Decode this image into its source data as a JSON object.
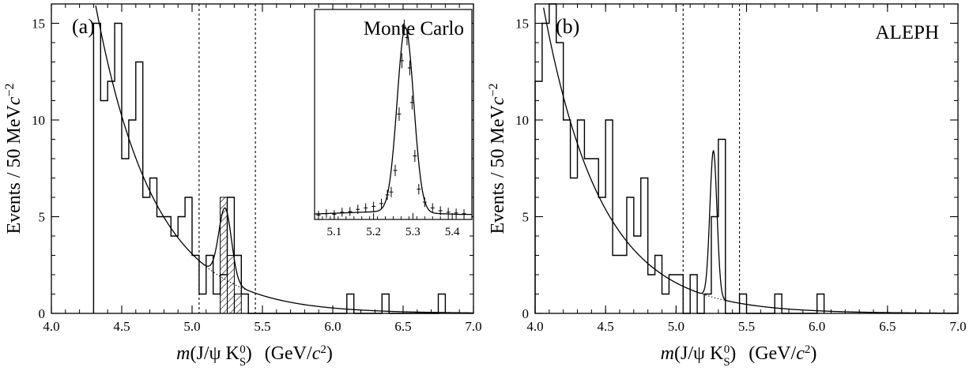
{
  "chart_data": [
    {
      "type": "histogram",
      "panel_label": "(a)",
      "corner_text": "",
      "ylabel": "Events / 50 MeV",
      "ylabel_unit": "c",
      "ylabel_exp": "−2",
      "xlabel_m": "m",
      "xlabel_paren": "(J/ψ K",
      "xlabel_sub": "S",
      "xlabel_sup": "0",
      "xlabel_close": ")",
      "xlabel_units_open": "(GeV/",
      "xlabel_units_c": "c",
      "xlabel_units_exp": "2",
      "xlabel_units_close": ")",
      "xlim": [
        4.0,
        7.0
      ],
      "ylim": [
        0,
        16
      ],
      "xticks": [
        "4.0",
        "4.5",
        "5.0",
        "5.5",
        "6.0",
        "6.5",
        "7.0"
      ],
      "yticks": [
        "0",
        "5",
        "10",
        "15"
      ],
      "bin_width": 0.05,
      "bin_edges_start": 4.3,
      "counts": [
        15,
        11,
        12,
        15,
        8,
        10,
        13,
        6,
        7,
        5,
        5,
        4,
        5,
        6,
        3,
        1,
        3,
        1,
        2,
        6,
        3,
        1,
        0,
        0,
        0,
        0,
        0,
        0,
        0,
        0,
        0,
        0,
        0,
        0,
        0,
        0,
        1,
        0,
        0,
        0,
        0,
        1,
        0,
        0,
        0,
        0,
        0,
        0,
        0,
        1
      ],
      "hatched_bins": [
        [
          5.2,
          6
        ],
        [
          5.25,
          3
        ],
        [
          5.3,
          1
        ]
      ],
      "vlines": [
        5.05,
        5.45
      ],
      "fit": {
        "bg_amplitude": 16.5,
        "bg_decay": 2.4,
        "bg_x0": 4.3,
        "peak_mean": 5.235,
        "peak_sigma": 0.045,
        "peak_height": 3.7
      },
      "inset": {
        "title": "Monte Carlo",
        "xlim": [
          5.05,
          5.45
        ],
        "xticks": [
          "5.1",
          "5.2",
          "5.3",
          "5.4"
        ],
        "ymax": 14,
        "peak_mean": 5.281,
        "peak_sigma": 0.021,
        "peak_height": 12.8,
        "baseline": 0.35,
        "points": [
          [
            5.06,
            0.3
          ],
          [
            5.08,
            0.4
          ],
          [
            5.1,
            0.35
          ],
          [
            5.12,
            0.5
          ],
          [
            5.14,
            0.55
          ],
          [
            5.16,
            0.7
          ],
          [
            5.18,
            0.8
          ],
          [
            5.2,
            0.9
          ],
          [
            5.22,
            1.1
          ],
          [
            5.235,
            1.7
          ],
          [
            5.245,
            1.9
          ],
          [
            5.255,
            3.4
          ],
          [
            5.265,
            7.3
          ],
          [
            5.272,
            11.0
          ],
          [
            5.278,
            13.3
          ],
          [
            5.285,
            12.6
          ],
          [
            5.292,
            10.5
          ],
          [
            5.298,
            8.1
          ],
          [
            5.305,
            4.4
          ],
          [
            5.315,
            2.1
          ],
          [
            5.33,
            1.2
          ],
          [
            5.35,
            0.8
          ],
          [
            5.37,
            0.6
          ],
          [
            5.39,
            0.5
          ],
          [
            5.41,
            0.45
          ],
          [
            5.43,
            0.4
          ]
        ]
      }
    },
    {
      "type": "histogram",
      "panel_label": "(b)",
      "corner_text": "ALEPH",
      "ylabel": "Events / 50 MeV",
      "ylabel_unit": "c",
      "ylabel_exp": "−2",
      "xlabel_m": "m",
      "xlabel_paren": "(J/ψ K",
      "xlabel_sub": "S",
      "xlabel_sup": "0",
      "xlabel_close": ")",
      "xlabel_units_open": "(GeV/",
      "xlabel_units_c": "c",
      "xlabel_units_exp": "2",
      "xlabel_units_close": ")",
      "xlim": [
        4.0,
        7.0
      ],
      "ylim": [
        0,
        16
      ],
      "xticks": [
        "4.0",
        "4.5",
        "5.0",
        "5.5",
        "6.0",
        "6.5",
        "7.0"
      ],
      "yticks": [
        "0",
        "5",
        "10",
        "15"
      ],
      "bin_width": 0.05,
      "bin_edges_start": 4.0,
      "counts": [
        12,
        15,
        16,
        14,
        10,
        7,
        10,
        8,
        8,
        6,
        10,
        3,
        3,
        6,
        4,
        7,
        2,
        3,
        1,
        2,
        2,
        0,
        2,
        0,
        1,
        5,
        9,
        0,
        0,
        1,
        0,
        0,
        0,
        0,
        1,
        0,
        0,
        0,
        0,
        0,
        1
      ],
      "hatched_bins": [],
      "vlines": [
        5.05,
        5.45
      ],
      "fit": {
        "bg_amplitude": 16.2,
        "bg_decay": 2.45,
        "bg_x0": 4.05,
        "peak_mean": 5.265,
        "peak_sigma": 0.025,
        "peak_height": 7.6
      }
    }
  ]
}
